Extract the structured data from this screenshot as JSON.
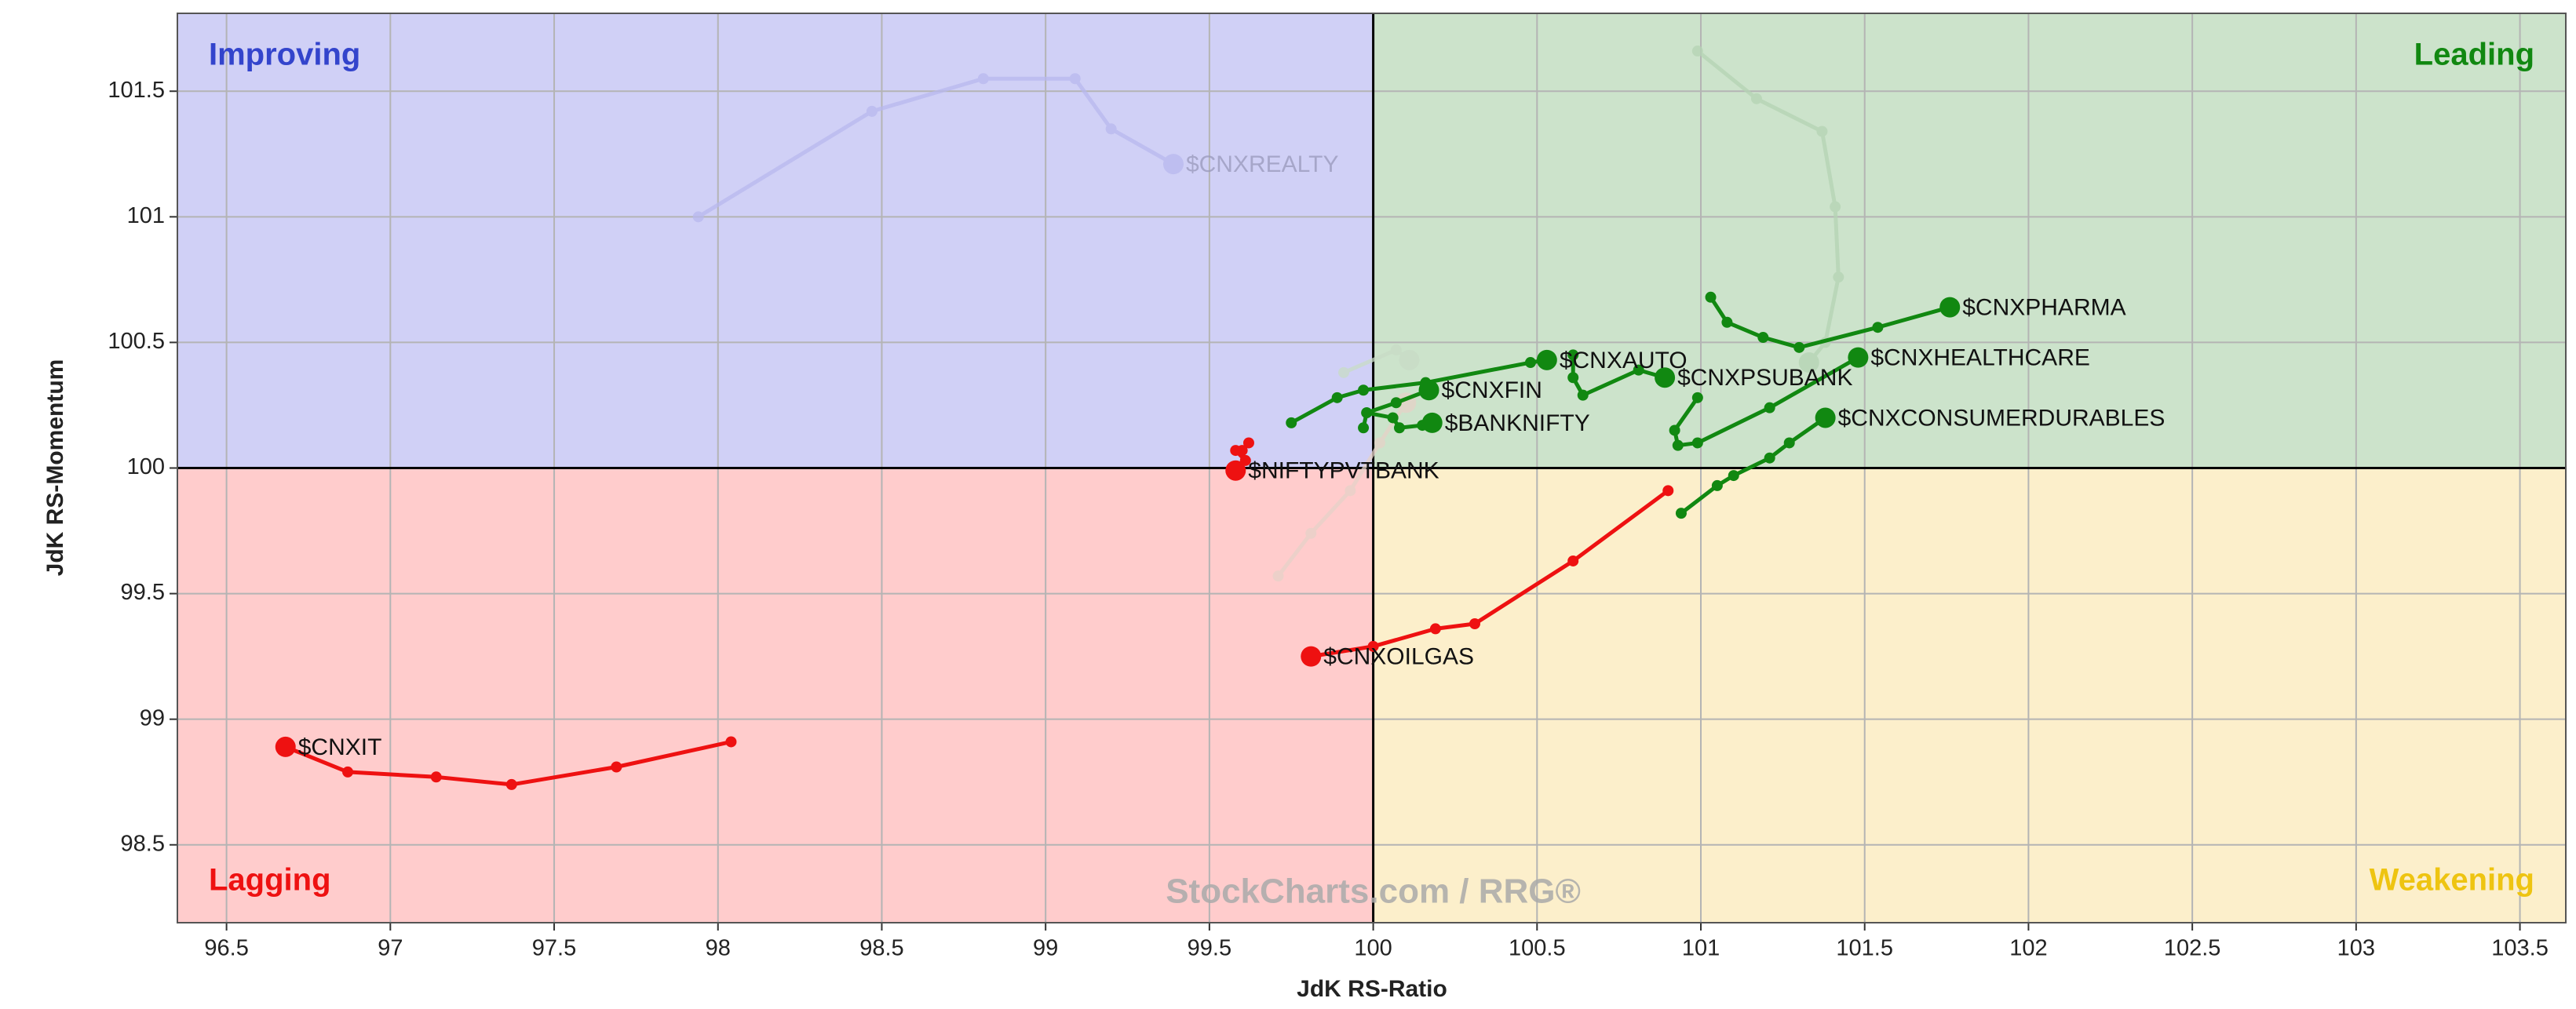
{
  "chart_data": {
    "type": "rrg",
    "x_label": "JdK RS-Ratio",
    "y_label": "JdK RS-Momentum",
    "watermark": "StockCharts.com / RRG®",
    "xlim": [
      96.35,
      103.64
    ],
    "ylim": [
      98.19,
      101.81
    ],
    "xticks": [
      96.5,
      97,
      97.5,
      98,
      98.5,
      99,
      99.5,
      100,
      100.5,
      101,
      101.5,
      102,
      102.5,
      103,
      103.5
    ],
    "yticks": [
      98.5,
      99,
      99.5,
      100,
      100.5,
      101,
      101.5
    ],
    "grid": true,
    "center": {
      "x": 100,
      "y": 100
    },
    "quadrants": [
      {
        "name": "Improving",
        "corner": "top-left",
        "fill": "#d0d0f6",
        "color": "#3344cc"
      },
      {
        "name": "Leading",
        "corner": "top-right",
        "fill": "#cce3cb",
        "color": "#118811"
      },
      {
        "name": "Lagging",
        "corner": "bottom-left",
        "fill": "#ffcccc",
        "color": "#ee1111"
      },
      {
        "name": "Weakening",
        "corner": "bottom-right",
        "fill": "#fcefcb",
        "color": "#eec411"
      }
    ],
    "series": [
      {
        "name": "$CNXREALTY",
        "color": "#b8b8ee",
        "faded": true,
        "x": [
          97.94,
          98.47,
          98.81,
          99.09,
          99.2,
          99.39
        ],
        "values": [
          101.0,
          101.42,
          101.55,
          101.55,
          101.35,
          101.21
        ]
      },
      {
        "name": null,
        "color": "#b5d4b4",
        "faded": true,
        "x": [
          100.99,
          101.17,
          101.37,
          101.41,
          101.42,
          101.38,
          101.33
        ],
        "values": [
          101.66,
          101.47,
          101.34,
          101.04,
          100.76,
          100.5,
          100.42
        ]
      },
      {
        "name": null,
        "color": "#e6d2c8",
        "faded": true,
        "x": [
          99.71,
          99.81,
          99.93,
          100.02,
          100.1
        ],
        "values": [
          99.57,
          99.74,
          99.91,
          100.1,
          100.26
        ]
      },
      {
        "name": null,
        "color": "#c8dcc6",
        "faded": true,
        "x": [
          99.91,
          100.07,
          100.11
        ],
        "values": [
          100.38,
          100.47,
          100.43
        ]
      },
      {
        "name": "$CNXIT",
        "color": "#ee1111",
        "x": [
          98.04,
          97.69,
          97.37,
          97.14,
          96.87,
          96.68
        ],
        "values": [
          98.91,
          98.81,
          98.74,
          98.77,
          98.79,
          98.89
        ]
      },
      {
        "name": "$CNXOILGAS",
        "color": "#ee1111",
        "x": [
          100.9,
          100.61,
          100.31,
          100.19,
          100.0,
          99.81
        ],
        "values": [
          99.91,
          99.63,
          99.38,
          99.36,
          99.29,
          99.25
        ]
      },
      {
        "name": "$NIFTYPVTBANK",
        "color": "#ee1111",
        "x": [
          99.62,
          99.6,
          99.58,
          99.61,
          99.58
        ],
        "values": [
          100.1,
          100.07,
          100.07,
          100.03,
          99.99
        ]
      },
      {
        "name": "$CNXPHARMA",
        "color": "#118811",
        "x": [
          101.03,
          101.08,
          101.19,
          101.3,
          101.54,
          101.76
        ],
        "values": [
          100.68,
          100.58,
          100.52,
          100.48,
          100.56,
          100.64
        ]
      },
      {
        "name": "$CNXHEALTHCARE",
        "color": "#118811",
        "x": [
          100.99,
          100.92,
          100.93,
          100.99,
          101.21,
          101.48
        ],
        "values": [
          100.28,
          100.15,
          100.09,
          100.1,
          100.24,
          100.44
        ]
      },
      {
        "name": "$CNXCONSUMERDURABLES",
        "color": "#118811",
        "x": [
          100.94,
          101.05,
          101.1,
          101.21,
          101.27,
          101.38
        ],
        "values": [
          99.82,
          99.93,
          99.97,
          100.04,
          100.1,
          100.2
        ]
      },
      {
        "name": "$CNXPSUBANK",
        "color": "#118811",
        "x": [
          100.61,
          100.61,
          100.64,
          100.81,
          100.89
        ],
        "values": [
          100.45,
          100.36,
          100.29,
          100.39,
          100.36
        ]
      },
      {
        "name": "$CNXAUTO",
        "color": "#118811",
        "x": [
          99.75,
          99.89,
          99.97,
          100.16,
          100.48,
          100.53
        ],
        "values": [
          100.18,
          100.28,
          100.31,
          100.34,
          100.42,
          100.43
        ]
      },
      {
        "name": "$CNXFIN",
        "color": "#118811",
        "x": [
          99.97,
          99.98,
          100.07,
          100.17
        ],
        "values": [
          100.16,
          100.22,
          100.26,
          100.31
        ]
      },
      {
        "name": "$BANKNIFTY",
        "color": "#118811",
        "x": [
          99.98,
          100.06,
          100.08,
          100.15,
          100.18
        ],
        "values": [
          100.22,
          100.2,
          100.16,
          100.17,
          100.18
        ]
      }
    ]
  }
}
